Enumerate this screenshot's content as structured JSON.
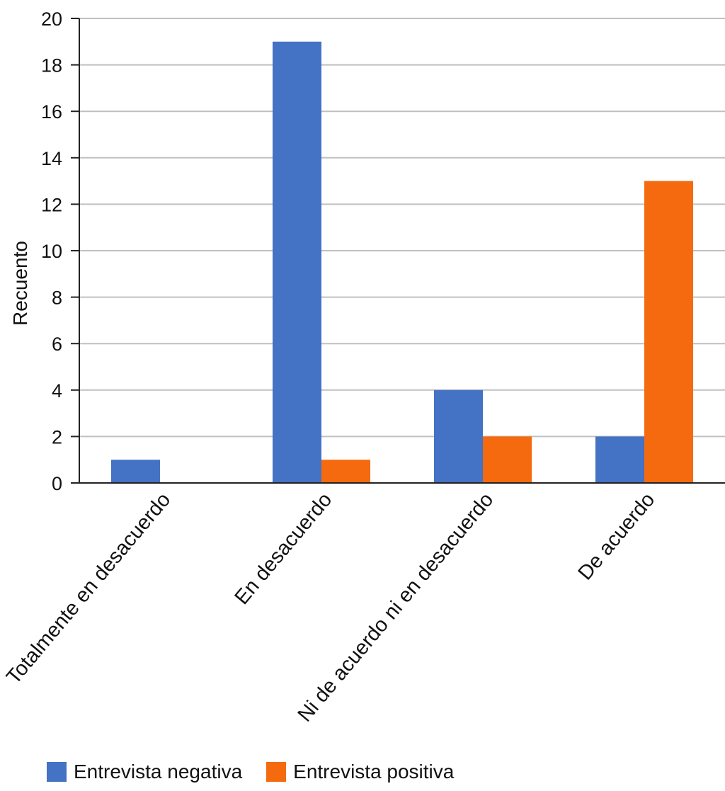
{
  "chart_data": {
    "type": "bar",
    "title": "",
    "xlabel": "",
    "ylabel": "Recuento",
    "ylim": [
      0,
      20
    ],
    "yticks": [
      0,
      2,
      4,
      6,
      8,
      10,
      12,
      14,
      16,
      18,
      20
    ],
    "grid": true,
    "legend_position": "bottom-left",
    "categories": [
      "Totalmente en desacuerdo",
      "En desacuerdo",
      "Ni de acuerdo ni en desacuerdo",
      "De acuerdo"
    ],
    "series": [
      {
        "name": "Entrevista negativa",
        "color": "#4472C4",
        "values": [
          1,
          19,
          4,
          2
        ]
      },
      {
        "name": "Entrevista positiva",
        "color": "#F56A0E",
        "values": [
          0,
          1,
          2,
          13
        ]
      }
    ]
  }
}
